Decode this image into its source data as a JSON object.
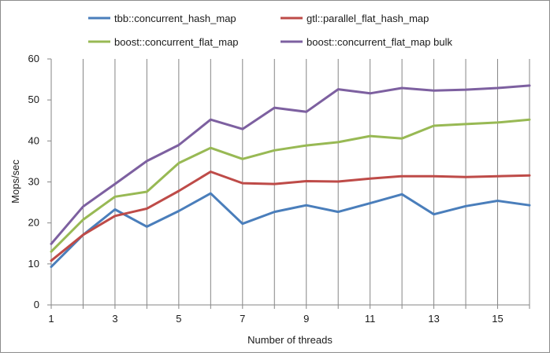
{
  "chart_data": {
    "type": "line",
    "title": "",
    "xlabel": "Number of threads",
    "ylabel": "Mops/sec",
    "xlim": [
      1,
      16
    ],
    "ylim": [
      0,
      60
    ],
    "x_ticks": [
      1,
      3,
      5,
      7,
      9,
      11,
      13,
      15
    ],
    "x_tick_labels": [
      "1",
      "3",
      "5",
      "7",
      "9",
      "11",
      "13",
      "15"
    ],
    "y_ticks": [
      0,
      10,
      20,
      30,
      40,
      50,
      60
    ],
    "y_tick_labels": [
      "0",
      "10",
      "20",
      "30",
      "40",
      "50",
      "60"
    ],
    "x": [
      1,
      2,
      3,
      4,
      5,
      6,
      7,
      8,
      9,
      10,
      11,
      12,
      13,
      14,
      15,
      16
    ],
    "grid": "vertical",
    "legend_position": "top",
    "series": [
      {
        "name": "tbb::concurrent_hash_map",
        "color": "#4a7ebb",
        "values": [
          9.3,
          17.1,
          23.3,
          19.1,
          22.9,
          27.2,
          19.8,
          22.7,
          24.3,
          22.7,
          24.8,
          27.0,
          22.1,
          24.1,
          25.4,
          24.3
        ]
      },
      {
        "name": "gtl::parallel_flat_hash_map",
        "color": "#be4b48",
        "values": [
          10.8,
          17.1,
          21.7,
          23.5,
          27.8,
          32.5,
          29.7,
          29.5,
          30.2,
          30.1,
          30.8,
          31.4,
          31.4,
          31.2,
          31.4,
          31.6
        ]
      },
      {
        "name": "boost::concurrent_flat_map",
        "color": "#98b954",
        "values": [
          13.0,
          20.8,
          26.4,
          27.6,
          34.6,
          38.3,
          35.6,
          37.7,
          38.9,
          39.7,
          41.2,
          40.6,
          43.7,
          44.1,
          44.5,
          45.2
        ]
      },
      {
        "name": "boost::concurrent_flat_map bulk",
        "color": "#7d60a0",
        "values": [
          14.9,
          24.0,
          29.5,
          35.1,
          39.0,
          45.2,
          42.9,
          48.1,
          47.1,
          52.6,
          51.6,
          52.9,
          52.3,
          52.5,
          52.9,
          53.5
        ]
      }
    ]
  }
}
